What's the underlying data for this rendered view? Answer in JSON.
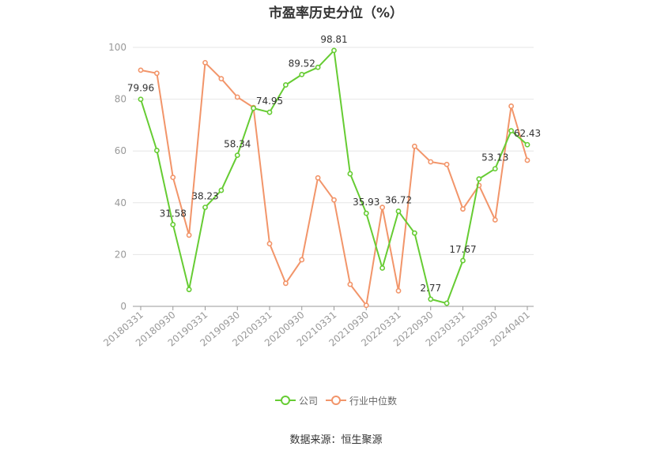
{
  "title": "市盈率历史分位（%）",
  "source_label": "数据来源：恒生聚源",
  "colors": {
    "company": "#66cc33",
    "industry": "#f2956a",
    "grid": "#e6e6e6",
    "axis": "#999999"
  },
  "chart_data": {
    "type": "line",
    "title": "市盈率历史分位（%）",
    "ylim": [
      0,
      100
    ],
    "yticks": [
      0,
      20,
      40,
      60,
      80,
      100
    ],
    "grid": true,
    "legend_position": "bottom",
    "x": [
      "20180331",
      "20180630",
      "20180930",
      "20181231",
      "20190331",
      "20190630",
      "20190930",
      "20191231",
      "20200331",
      "20200630",
      "20200930",
      "20201231",
      "20210331",
      "20210630",
      "20210930",
      "20211231",
      "20220331",
      "20220630",
      "20220930",
      "20221231",
      "20230331",
      "20230630",
      "20230930",
      "20231231",
      "20240401"
    ],
    "xticks_shown": [
      "20180331",
      "20180930",
      "20190331",
      "20190930",
      "20200331",
      "20200930",
      "20210331",
      "20210930",
      "20220331",
      "20220930",
      "20230331",
      "20230930",
      "20240401"
    ],
    "series": [
      {
        "name": "公司",
        "values": [
          79.96,
          60.2,
          31.58,
          6.5,
          38.23,
          44.8,
          58.34,
          76.5,
          74.95,
          85.5,
          89.52,
          92.3,
          98.81,
          51.2,
          35.93,
          14.8,
          36.72,
          28.3,
          2.77,
          1.2,
          17.67,
          49.2,
          53.13,
          67.8,
          62.43
        ],
        "labeled": [
          {
            "i": 0,
            "text": "79.96"
          },
          {
            "i": 2,
            "text": "31.58"
          },
          {
            "i": 4,
            "text": "38.23"
          },
          {
            "i": 6,
            "text": "58.34"
          },
          {
            "i": 8,
            "text": "74.95"
          },
          {
            "i": 10,
            "text": "89.52"
          },
          {
            "i": 12,
            "text": "98.81"
          },
          {
            "i": 14,
            "text": "35.93"
          },
          {
            "i": 16,
            "text": "36.72"
          },
          {
            "i": 18,
            "text": "2.77"
          },
          {
            "i": 20,
            "text": "17.67"
          },
          {
            "i": 22,
            "text": "53.13"
          },
          {
            "i": 24,
            "text": "62.43"
          }
        ]
      },
      {
        "name": "行业中位数",
        "values": [
          91.2,
          90.0,
          49.8,
          27.5,
          94.1,
          87.9,
          80.8,
          76.8,
          24.2,
          8.9,
          18.0,
          49.6,
          41.1,
          8.5,
          0.4,
          38.2,
          6.0,
          61.8,
          55.8,
          54.8,
          37.6,
          46.7,
          33.4,
          77.3,
          56.4
        ]
      }
    ]
  }
}
